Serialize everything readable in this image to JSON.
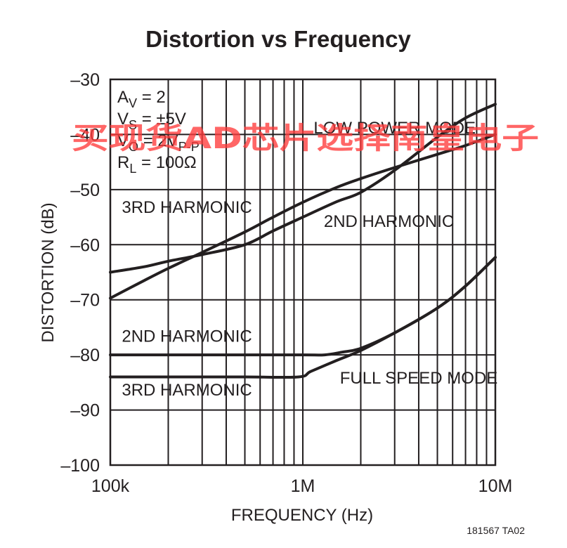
{
  "chart_data": {
    "type": "line",
    "title": "Distortion vs Frequency",
    "xlabel": "FREQUENCY (Hz)",
    "ylabel": "DISTORTION (dB)",
    "x_scale": "log",
    "xlim": [
      100000,
      10000000
    ],
    "ylim": [
      -100,
      -30
    ],
    "x_tick_labels": [
      "100k",
      "1M",
      "10M"
    ],
    "y_tick_labels": [
      "–30",
      "–40",
      "–50",
      "–60",
      "–70",
      "–80",
      "–90",
      "–100"
    ],
    "grid": true,
    "conditions": [
      {
        "main": "A",
        "sub": "V",
        "rest": " = 2"
      },
      {
        "main": "V",
        "sub": "S",
        "rest": " = ±5V"
      },
      {
        "main": "V",
        "sub": "O",
        "rest": " = 2V",
        "sub2": "P-P"
      },
      {
        "main": "R",
        "sub": "L",
        "rest": " = 100Ω"
      }
    ],
    "annotations": [
      {
        "text": "LOW POWER MODE",
        "x": 3000000,
        "y": -39.8
      },
      {
        "text": "3RD HARMONIC",
        "x": 250000,
        "y": -54.2
      },
      {
        "text": "2ND HARMONIC",
        "x": 2800000,
        "y": -56.8
      },
      {
        "text": "2ND HARMONIC",
        "x": 250000,
        "y": -77.6
      },
      {
        "text": "3RD HARMONIC",
        "x": 250000,
        "y": -87.4
      },
      {
        "text": "FULL SPEED MODE",
        "x": 4000000,
        "y": -85.2
      }
    ],
    "series": [
      {
        "x": [
          100000,
          150000,
          200000,
          300000,
          500000,
          700000,
          1000000,
          1500000,
          2000000,
          3000000,
          5000000,
          7000000,
          10000000
        ],
        "y": [
          -65,
          -64,
          -63,
          -61.8,
          -60,
          -57.5,
          -55,
          -52.2,
          -50.5,
          -46.5,
          -40.5,
          -37,
          -34.5
        ]
      },
      {
        "x": [
          100000,
          150000,
          200000,
          300000,
          500000,
          700000,
          1000000,
          1500000,
          2000000,
          3000000,
          5000000,
          7000000,
          10000000
        ],
        "y": [
          -69.7,
          -66.5,
          -64.3,
          -61.4,
          -57.7,
          -55,
          -52.3,
          -49.6,
          -48,
          -46,
          -43.6,
          -42,
          -40
        ]
      },
      {
        "x": [
          100000,
          200000,
          500000,
          1000000,
          1300000,
          1600000,
          2000000,
          3000000,
          5000000,
          7000000,
          10000000
        ],
        "y": [
          -80,
          -80,
          -80,
          -80,
          -80,
          -79.5,
          -78.8,
          -76,
          -71.5,
          -67.5,
          -62.3
        ]
      },
      {
        "x": [
          100000,
          200000,
          500000,
          950000,
          1100000,
          1500000,
          2000000,
          3000000,
          5000000,
          7000000,
          10000000
        ],
        "y": [
          -84,
          -84,
          -84,
          -84,
          -83,
          -81,
          -79.2,
          -76,
          -71.5,
          -67.5,
          -62.3
        ]
      }
    ]
  },
  "watermark": "买现货AD芯片选择南皇电子",
  "figure_code": "181567 TA02"
}
